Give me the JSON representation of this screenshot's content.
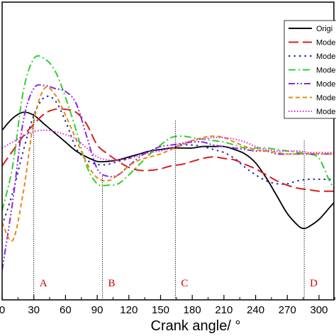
{
  "chart_data": {
    "type": "line",
    "xlabel": "Crank angle/ °",
    "xlim": [
      0,
      330
    ],
    "ylim": [
      0,
      1
    ],
    "x_ticks": [
      0,
      30,
      60,
      90,
      120,
      150,
      180,
      210,
      240,
      270,
      300
    ],
    "x_tick_labels": [
      "0",
      "30",
      "60",
      "90",
      "120",
      "150",
      "180",
      "210",
      "240",
      "270",
      "300"
    ],
    "grid": false,
    "legend_position": "top-right",
    "markers": [
      {
        "label": "A",
        "x": 30
      },
      {
        "label": "B",
        "x": 95
      },
      {
        "label": "C",
        "x": 164
      },
      {
        "label": "D",
        "x": 286
      }
    ],
    "marker_color": "#cc0000",
    "series": [
      {
        "name": "Origi",
        "color": "#000000",
        "dash": "solid",
        "points": [
          [
            0,
            0.57
          ],
          [
            10,
            0.61
          ],
          [
            20,
            0.63
          ],
          [
            30,
            0.62
          ],
          [
            40,
            0.59
          ],
          [
            50,
            0.56
          ],
          [
            60,
            0.53
          ],
          [
            70,
            0.5
          ],
          [
            80,
            0.48
          ],
          [
            90,
            0.465
          ],
          [
            100,
            0.465
          ],
          [
            110,
            0.47
          ],
          [
            120,
            0.48
          ],
          [
            130,
            0.49
          ],
          [
            140,
            0.5
          ],
          [
            150,
            0.505
          ],
          [
            160,
            0.51
          ],
          [
            170,
            0.51
          ],
          [
            180,
            0.51
          ],
          [
            190,
            0.515
          ],
          [
            200,
            0.515
          ],
          [
            210,
            0.515
          ],
          [
            220,
            0.505
          ],
          [
            230,
            0.49
          ],
          [
            240,
            0.46
          ],
          [
            250,
            0.41
          ],
          [
            260,
            0.35
          ],
          [
            270,
            0.29
          ],
          [
            280,
            0.25
          ],
          [
            285,
            0.24
          ],
          [
            290,
            0.245
          ],
          [
            300,
            0.27
          ],
          [
            310,
            0.31
          ],
          [
            320,
            0.35
          ]
        ]
      },
      {
        "name": "Mode",
        "color": "#d42020",
        "dash": "long-dash",
        "points": [
          [
            0,
            0.45
          ],
          [
            10,
            0.5
          ],
          [
            20,
            0.55
          ],
          [
            30,
            0.59
          ],
          [
            40,
            0.625
          ],
          [
            50,
            0.64
          ],
          [
            60,
            0.64
          ],
          [
            70,
            0.63
          ],
          [
            80,
            0.59
          ],
          [
            90,
            0.52
          ],
          [
            100,
            0.49
          ],
          [
            110,
            0.465
          ],
          [
            120,
            0.445
          ],
          [
            130,
            0.435
          ],
          [
            140,
            0.435
          ],
          [
            150,
            0.44
          ],
          [
            160,
            0.45
          ],
          [
            170,
            0.455
          ],
          [
            180,
            0.465
          ],
          [
            190,
            0.475
          ],
          [
            200,
            0.48
          ],
          [
            210,
            0.475
          ],
          [
            220,
            0.47
          ],
          [
            230,
            0.455
          ],
          [
            240,
            0.44
          ],
          [
            250,
            0.42
          ],
          [
            260,
            0.4
          ],
          [
            270,
            0.385
          ],
          [
            280,
            0.375
          ],
          [
            290,
            0.37
          ],
          [
            300,
            0.365
          ],
          [
            310,
            0.365
          ],
          [
            320,
            0.365
          ]
        ]
      },
      {
        "name": "Mode",
        "color": "#1a2ea8",
        "dash": "dot",
        "points": [
          [
            0,
            0.25
          ],
          [
            10,
            0.36
          ],
          [
            20,
            0.5
          ],
          [
            30,
            0.62
          ],
          [
            40,
            0.68
          ],
          [
            50,
            0.67
          ],
          [
            60,
            0.6
          ],
          [
            70,
            0.51
          ],
          [
            80,
            0.47
          ],
          [
            90,
            0.455
          ],
          [
            100,
            0.455
          ],
          [
            110,
            0.465
          ],
          [
            120,
            0.475
          ],
          [
            130,
            0.49
          ],
          [
            140,
            0.5
          ],
          [
            150,
            0.505
          ],
          [
            160,
            0.51
          ],
          [
            170,
            0.52
          ],
          [
            180,
            0.52
          ],
          [
            190,
            0.515
          ],
          [
            200,
            0.505
          ],
          [
            210,
            0.495
          ],
          [
            220,
            0.475
          ],
          [
            230,
            0.445
          ],
          [
            240,
            0.42
          ],
          [
            250,
            0.4
          ],
          [
            260,
            0.39
          ],
          [
            270,
            0.39
          ],
          [
            280,
            0.4
          ],
          [
            290,
            0.405
          ],
          [
            300,
            0.405
          ],
          [
            310,
            0.405
          ],
          [
            320,
            0.41
          ]
        ]
      },
      {
        "name": "Mode",
        "color": "#2ed12e",
        "dash": "dash-dot",
        "points": [
          [
            0,
            0.3
          ],
          [
            10,
            0.45
          ],
          [
            20,
            0.7
          ],
          [
            30,
            0.81
          ],
          [
            40,
            0.81
          ],
          [
            50,
            0.77
          ],
          [
            60,
            0.68
          ],
          [
            70,
            0.57
          ],
          [
            80,
            0.45
          ],
          [
            90,
            0.39
          ],
          [
            100,
            0.385
          ],
          [
            110,
            0.39
          ],
          [
            120,
            0.42
          ],
          [
            130,
            0.455
          ],
          [
            140,
            0.49
          ],
          [
            150,
            0.52
          ],
          [
            160,
            0.545
          ],
          [
            170,
            0.55
          ],
          [
            180,
            0.545
          ],
          [
            190,
            0.54
          ],
          [
            200,
            0.535
          ],
          [
            210,
            0.53
          ],
          [
            220,
            0.52
          ],
          [
            230,
            0.51
          ],
          [
            240,
            0.51
          ],
          [
            250,
            0.51
          ],
          [
            260,
            0.505
          ],
          [
            270,
            0.5
          ],
          [
            280,
            0.495
          ],
          [
            290,
            0.49
          ],
          [
            300,
            0.475
          ],
          [
            310,
            0.4
          ],
          [
            320,
            0.34
          ]
        ]
      },
      {
        "name": "Mode",
        "color": "#8a2be2",
        "dash": "dash-dot-dot",
        "points": [
          [
            0,
            0.1
          ],
          [
            10,
            0.33
          ],
          [
            20,
            0.6
          ],
          [
            30,
            0.71
          ],
          [
            40,
            0.72
          ],
          [
            50,
            0.71
          ],
          [
            60,
            0.7
          ],
          [
            70,
            0.66
          ],
          [
            80,
            0.55
          ],
          [
            90,
            0.44
          ],
          [
            100,
            0.415
          ],
          [
            110,
            0.42
          ],
          [
            120,
            0.45
          ],
          [
            130,
            0.48
          ],
          [
            140,
            0.5
          ],
          [
            150,
            0.515
          ],
          [
            160,
            0.52
          ],
          [
            170,
            0.525
          ],
          [
            180,
            0.53
          ],
          [
            190,
            0.53
          ],
          [
            200,
            0.52
          ],
          [
            210,
            0.515
          ],
          [
            220,
            0.51
          ],
          [
            230,
            0.505
          ],
          [
            240,
            0.5
          ],
          [
            250,
            0.5
          ],
          [
            260,
            0.49
          ],
          [
            270,
            0.49
          ],
          [
            280,
            0.49
          ],
          [
            290,
            0.49
          ],
          [
            300,
            0.49
          ],
          [
            310,
            0.49
          ],
          [
            320,
            0.49
          ]
        ]
      },
      {
        "name": "Mode",
        "color": "#e8880f",
        "dash": "short-dash",
        "points": [
          [
            0,
            0.26
          ],
          [
            10,
            0.2
          ],
          [
            20,
            0.36
          ],
          [
            30,
            0.6
          ],
          [
            40,
            0.71
          ],
          [
            50,
            0.69
          ],
          [
            60,
            0.62
          ],
          [
            70,
            0.54
          ],
          [
            80,
            0.46
          ],
          [
            90,
            0.41
          ],
          [
            100,
            0.4
          ],
          [
            110,
            0.42
          ],
          [
            120,
            0.45
          ],
          [
            130,
            0.47
          ],
          [
            140,
            0.48
          ],
          [
            150,
            0.49
          ],
          [
            160,
            0.505
          ],
          [
            170,
            0.52
          ],
          [
            180,
            0.535
          ],
          [
            190,
            0.545
          ],
          [
            200,
            0.55
          ],
          [
            210,
            0.545
          ],
          [
            220,
            0.53
          ],
          [
            230,
            0.515
          ],
          [
            240,
            0.505
          ],
          [
            250,
            0.5
          ],
          [
            260,
            0.495
          ],
          [
            270,
            0.49
          ],
          [
            280,
            0.49
          ],
          [
            290,
            0.49
          ],
          [
            300,
            0.49
          ],
          [
            310,
            0.49
          ],
          [
            320,
            0.49
          ]
        ]
      },
      {
        "name": "Mode",
        "color": "#e020e0",
        "dash": "fine-dot",
        "points": [
          [
            0,
            0.51
          ],
          [
            10,
            0.53
          ],
          [
            20,
            0.55
          ],
          [
            30,
            0.565
          ],
          [
            40,
            0.57
          ],
          [
            50,
            0.565
          ],
          [
            60,
            0.555
          ],
          [
            70,
            0.54
          ],
          [
            80,
            0.51
          ],
          [
            90,
            0.48
          ],
          [
            100,
            0.47
          ],
          [
            110,
            0.47
          ],
          [
            120,
            0.475
          ],
          [
            130,
            0.485
          ],
          [
            140,
            0.495
          ],
          [
            150,
            0.5
          ],
          [
            160,
            0.51
          ],
          [
            170,
            0.525
          ],
          [
            180,
            0.535
          ],
          [
            190,
            0.54
          ],
          [
            200,
            0.545
          ],
          [
            210,
            0.545
          ],
          [
            220,
            0.54
          ],
          [
            230,
            0.53
          ],
          [
            240,
            0.515
          ],
          [
            250,
            0.505
          ],
          [
            260,
            0.5
          ],
          [
            270,
            0.5
          ],
          [
            280,
            0.5
          ],
          [
            290,
            0.495
          ],
          [
            300,
            0.495
          ],
          [
            310,
            0.495
          ],
          [
            320,
            0.495
          ]
        ]
      }
    ]
  }
}
